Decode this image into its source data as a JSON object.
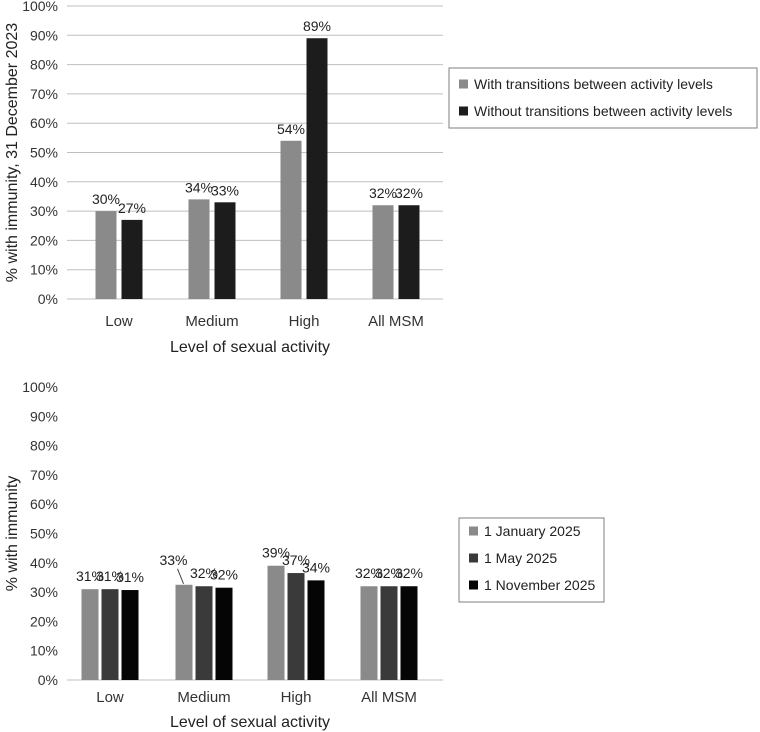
{
  "chart_data": [
    {
      "type": "bar",
      "xlabel": "Level of sexual activity",
      "ylabel": "% with immunity, 31 December 2023",
      "ylim": [
        0,
        100
      ],
      "yticks": [
        "0%",
        "10%",
        "20%",
        "30%",
        "40%",
        "50%",
        "60%",
        "70%",
        "80%",
        "90%",
        "100%"
      ],
      "grid": true,
      "legend_position": "right",
      "categories": [
        "Low",
        "Medium",
        "High",
        "All MSM"
      ],
      "series": [
        {
          "name": "With transitions between activity levels",
          "color": "#8a8a8a",
          "values": [
            30,
            34,
            54,
            32
          ],
          "labels": [
            "30%",
            "34%",
            "54%",
            "32%"
          ]
        },
        {
          "name": "Without transitions between activity levels",
          "color": "#1c1c1c",
          "values": [
            27,
            33,
            89,
            32
          ],
          "labels": [
            "27%",
            "33%",
            "89%",
            "32%"
          ]
        }
      ]
    },
    {
      "type": "bar",
      "xlabel": "Level of sexual activity",
      "ylabel": "% with immunity",
      "ylim": [
        0,
        100
      ],
      "yticks": [
        "0%",
        "10%",
        "20%",
        "30%",
        "40%",
        "50%",
        "60%",
        "70%",
        "80%",
        "90%",
        "100%"
      ],
      "grid": false,
      "legend_position": "right",
      "categories": [
        "Low",
        "Medium",
        "High",
        "All MSM"
      ],
      "series": [
        {
          "name": "1 January 2025",
          "color": "#8a8a8a",
          "values": [
            31,
            32.5,
            39,
            32
          ],
          "labels": [
            "31%",
            "33%",
            "39%",
            "32%"
          ]
        },
        {
          "name": "1 May 2025",
          "color": "#3a3a3a",
          "values": [
            31,
            32,
            36.5,
            32
          ],
          "labels": [
            "31%",
            "32%",
            "37%",
            "32%"
          ]
        },
        {
          "name": "1 November 2025",
          "color": "#050505",
          "values": [
            30.7,
            31.5,
            34,
            32
          ],
          "labels": [
            "31%",
            "32%",
            "34%",
            "32%"
          ]
        }
      ]
    }
  ]
}
